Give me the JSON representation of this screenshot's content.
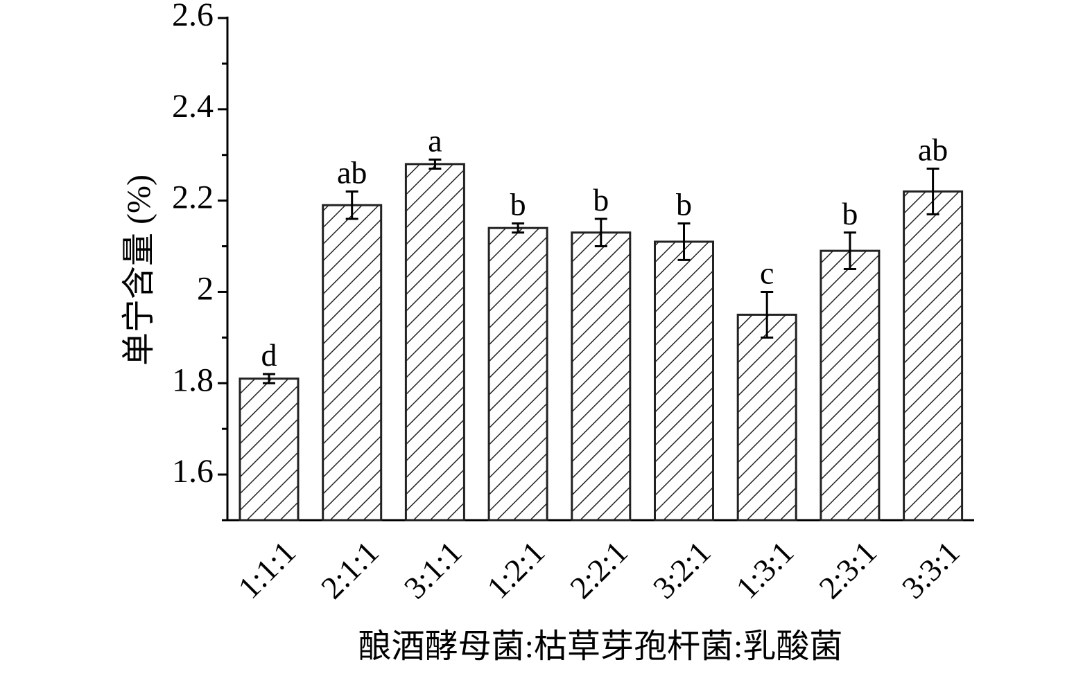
{
  "chart_data": {
    "type": "bar",
    "y_label": "单宁含量 (%)",
    "x_label": "酿酒酵母菌:枯草芽孢杆菌:乳酸菌",
    "categories": [
      "1:1:1",
      "2:1:1",
      "3:1:1",
      "1:2:1",
      "2:2:1",
      "3:2:1",
      "1:3:1",
      "2:3:1",
      "3:3:1"
    ],
    "values": [
      1.81,
      2.19,
      2.28,
      2.14,
      2.13,
      2.11,
      1.95,
      2.09,
      2.22
    ],
    "errors": [
      0.01,
      0.03,
      0.01,
      0.01,
      0.03,
      0.04,
      0.05,
      0.04,
      0.05
    ],
    "annotations": [
      "d",
      "ab",
      "a",
      "b",
      "b",
      "b",
      "c",
      "b",
      "ab"
    ],
    "color": "#222222",
    "ylim": [
      1.5,
      2.6
    ],
    "yticks": [
      1.6,
      1.8,
      2.0,
      2.2,
      2.4,
      2.6
    ],
    "yminorticks": [
      1.5,
      1.7,
      1.9,
      2.1,
      2.3,
      2.5
    ],
    "grid": false
  }
}
